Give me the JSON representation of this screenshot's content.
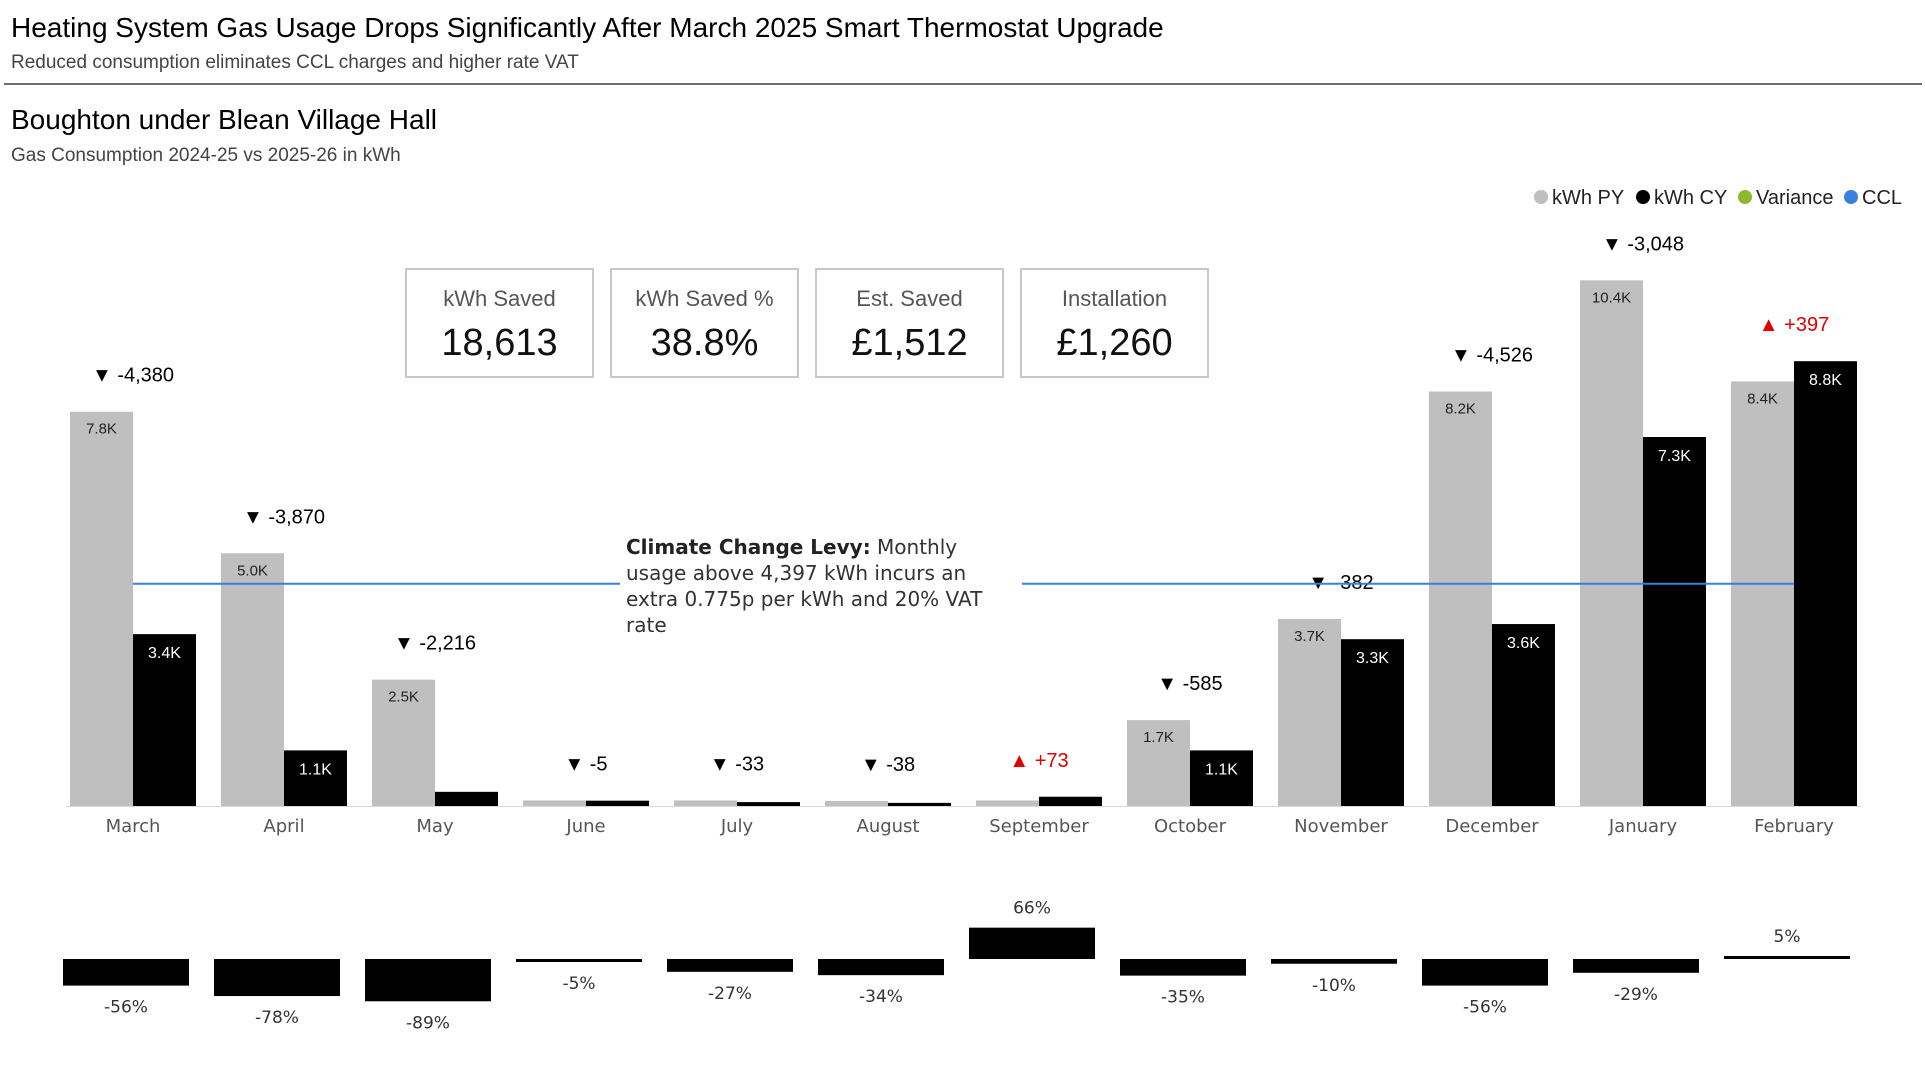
{
  "header": {
    "title": "Heating System Gas Usage Drops Significantly After March 2025 Smart Thermostat Upgrade",
    "subtitle": "Reduced consumption eliminates CCL charges and higher rate VAT"
  },
  "venue": {
    "name": "Boughton under Blean Village Hall",
    "subtitle": "Gas Consumption 2024-25 vs 2025-26 in kWh"
  },
  "kpis": [
    {
      "label": "kWh Saved",
      "value": "18,613"
    },
    {
      "label": "kWh Saved %",
      "value": "38.8%"
    },
    {
      "label": "Est. Saved",
      "value": "£1,512"
    },
    {
      "label": "Installation",
      "value": "£1,260"
    }
  ],
  "ccl_note": {
    "bold": "Climate Change Levy:",
    "text": " Monthly usage above 4,397 kWh incurs an extra 0.775p per kWh and 20% VAT rate"
  },
  "colors": {
    "py": "#bfbfbf",
    "cy": "#000000",
    "variance": "#8cb82a",
    "ccl": "#3a7fdc",
    "negative_marker": "#000000",
    "positive_marker": "#e00000"
  },
  "chart_data": {
    "type": "bar",
    "categories": [
      "March",
      "April",
      "May",
      "June",
      "July",
      "August",
      "September",
      "October",
      "November",
      "December",
      "January",
      "February"
    ],
    "series": [
      {
        "name": "kWh PY",
        "values": [
          7800,
          5000,
          2500,
          110,
          110,
          100,
          110,
          1700,
          3700,
          8200,
          10400,
          8400
        ],
        "labels": [
          "7.8K",
          "5.0K",
          "2.5K",
          "",
          "",
          "",
          "",
          "1.7K",
          "3.7K",
          "8.2K",
          "10.4K",
          "8.4K"
        ]
      },
      {
        "name": "kWh CY",
        "values": [
          3400,
          1100,
          280,
          105,
          77,
          62,
          183,
          1100,
          3300,
          3600,
          7300,
          8800
        ],
        "labels": [
          "3.4K",
          "1.1K",
          "",
          "",
          "",
          "",
          "",
          "1.1K",
          "3.3K",
          "3.6K",
          "7.3K",
          "8.8K"
        ]
      }
    ],
    "variance": [
      "▼ -4,380",
      "▼ -3,870",
      "▼ -2,216",
      "▼ -5",
      "▼ -33",
      "▼ -38",
      "▲ +73",
      "▼ -585",
      "▼ -382",
      "▼ -4,526",
      "▼ -3,048",
      "▲ +397"
    ],
    "variance_pct": [
      -56,
      -78,
      -89,
      -5,
      -27,
      -34,
      66,
      -35,
      -10,
      -56,
      -29,
      5
    ],
    "variance_pct_labels": [
      "-56%",
      "-78%",
      "-89%",
      "-5%",
      "-27%",
      "-34%",
      "66%",
      "-35%",
      "-10%",
      "-56%",
      "-29%",
      "5%"
    ],
    "reference_line": {
      "name": "CCL",
      "value": 4397
    },
    "legend": [
      "kWh PY",
      "kWh CY",
      "Variance",
      "CCL"
    ],
    "legend_position": "top-right",
    "ylim": [
      0,
      11000
    ]
  }
}
